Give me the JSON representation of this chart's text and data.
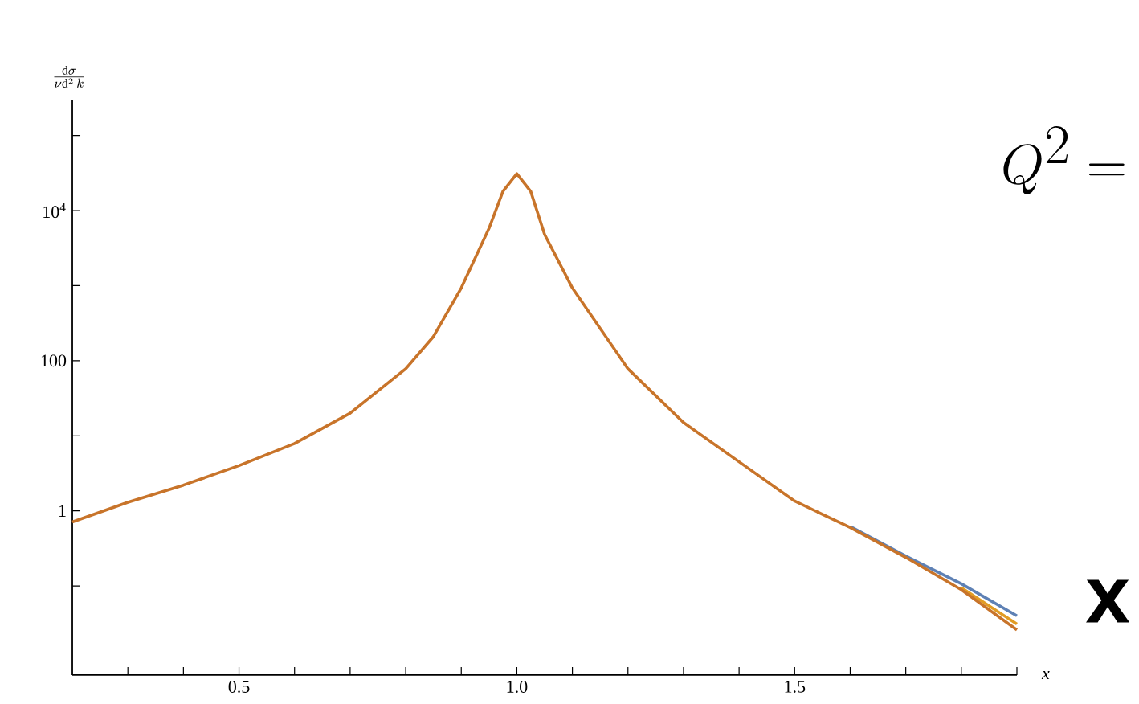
{
  "chart_data": {
    "type": "line",
    "ylabel": "\\frac{\\mathrm{d}\\sigma}{\\nu\\mathrm{d}^{2}\\,k}",
    "xlabel": "*x*",
    "log": "y",
    "annotations": [
      "Q^{2} =",
      "**x**"
    ],
    "x": [
      0.2,
      0.3,
      0.4,
      0.5,
      0.6,
      0.7,
      0.8,
      0.85,
      0.9,
      0.95,
      0.975,
      1.0,
      1.025,
      1.05,
      1.1,
      1.2,
      1.3,
      1.4,
      1.5,
      1.6,
      1.7,
      1.8,
      1.9
    ],
    "series": [
      {
        "color": "#5e81b5",
        "values": [
          null,
          null,
          null,
          null,
          null,
          null,
          null,
          null,
          null,
          null,
          null,
          null,
          null,
          null,
          null,
          null,
          null,
          null,
          null,
          0.62,
          0.25,
          0.107,
          0.04
        ]
      },
      {
        "color": "#e19c24",
        "values": [
          null,
          null,
          null,
          null,
          null,
          null,
          null,
          null,
          null,
          null,
          null,
          null,
          null,
          null,
          null,
          null,
          null,
          null,
          null,
          null,
          null,
          0.095,
          0.031
        ]
      },
      {
        "color": "#c8742a",
        "values": [
          0.71,
          1.3,
          2.2,
          4.0,
          7.9,
          20,
          78,
          210,
          930,
          5800,
          18000,
          31000,
          18000,
          4800,
          930,
          78,
          15,
          4.5,
          1.35,
          0.6,
          0.24,
          0.089,
          0.026
        ]
      }
    ],
    "xlim": [
      0.2,
      1.9
    ],
    "ylim": [
      0.0065,
      300000
    ],
    "xticks": [
      {
        "value": 0.3,
        "label": null
      },
      {
        "value": 0.4,
        "label": null
      },
      0.5,
      {
        "value": 0.6,
        "label": null
      },
      {
        "value": 0.7,
        "label": null
      },
      {
        "value": 0.8,
        "label": null
      },
      {
        "value": 0.9,
        "label": null
      },
      {
        "value": 1.0,
        "label": "1.0"
      },
      {
        "value": 1.1,
        "label": null
      },
      {
        "value": 1.2,
        "label": null
      },
      {
        "value": 1.3,
        "label": null
      },
      {
        "value": 1.4,
        "label": null
      },
      1.5,
      {
        "value": 1.6,
        "label": null
      },
      {
        "value": 1.7,
        "label": null
      },
      {
        "value": 1.8,
        "label": null
      },
      {
        "value": 1.9,
        "label": null
      }
    ],
    "yticks": [
      {
        "value": 0.01,
        "label": null
      },
      {
        "value": 0.1,
        "label": null
      },
      1,
      {
        "value": 10,
        "label": null
      },
      100,
      {
        "value": 1000,
        "label": null
      },
      {
        "value": 10000,
        "label": "10$^{4}$"
      },
      {
        "value": 100000,
        "label": null
      }
    ],
    "line_style": "solid",
    "marker": "none",
    "grid": false
  }
}
